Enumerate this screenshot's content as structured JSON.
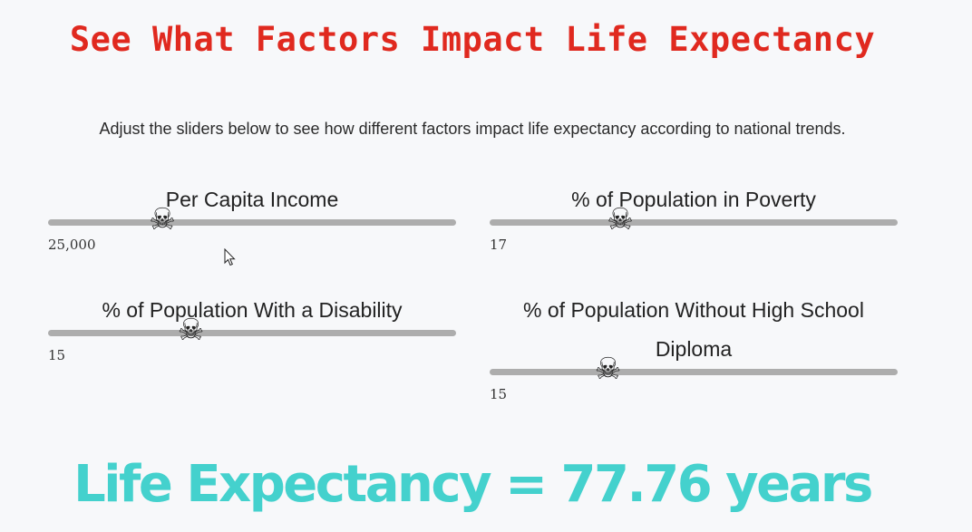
{
  "page": {
    "title": "See What Factors Impact Life Expectancy",
    "subtitle": "Adjust the sliders below to see how different factors impact life expectancy according to national trends."
  },
  "sliders": [
    {
      "label": "Per Capita Income",
      "value_text": "25,000",
      "level": 0.28,
      "thumb_icon": "skull-crossbones-icon"
    },
    {
      "label": "% of Population in Poverty",
      "value_text": "17",
      "level": 0.32,
      "thumb_icon": "skull-crossbones-icon"
    },
    {
      "label": "% of Population With a Disability",
      "value_text": "15",
      "level": 0.35,
      "thumb_icon": "skull-crossbones-icon"
    },
    {
      "label_line1": "% of Population Without High School",
      "label_line2": "Diploma",
      "value_text": "15",
      "level": 0.29,
      "thumb_icon": "skull-crossbones-icon"
    }
  ],
  "result": {
    "text": "Life Expectancy = 77.76 years"
  },
  "colors": {
    "title": "#e0291f",
    "result": "#44d1cd",
    "track": "#adadad",
    "background": "#f7f8fa"
  }
}
